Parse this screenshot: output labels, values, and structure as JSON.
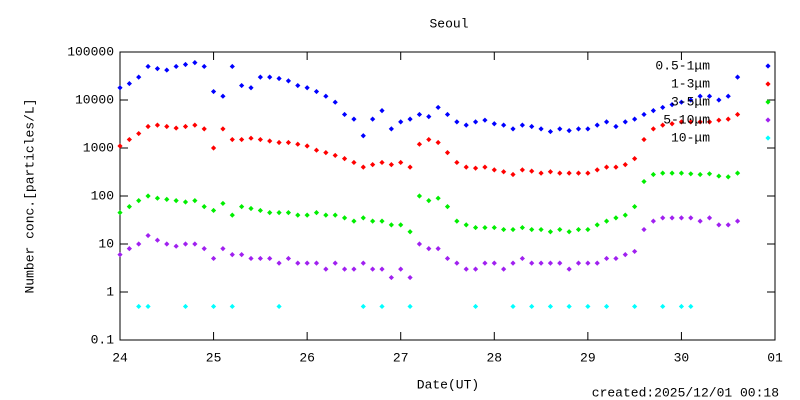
{
  "chart_data": {
    "type": "scatter",
    "title": "Seoul",
    "xlabel": "Date(UT)",
    "ylabel": "Number conc.[particles/L]",
    "annotation": "created:2025/12/01 00:18",
    "log_y": true,
    "legend": "top-right",
    "xlim": [
      24,
      31
    ],
    "xticks": [
      24,
      25,
      26,
      27,
      28,
      29,
      30,
      {
        "value": 31,
        "label": "01"
      }
    ],
    "ylim": [
      0.1,
      100000
    ],
    "yticks": [
      0.1,
      1,
      10,
      100,
      1000,
      10000,
      100000
    ],
    "x": [
      24.0,
      24.1,
      24.2,
      24.3,
      24.4,
      24.5,
      24.6,
      24.7,
      24.8,
      24.9,
      25.0,
      25.1,
      25.2,
      25.3,
      25.4,
      25.5,
      25.6,
      25.7,
      25.8,
      25.9,
      26.0,
      26.1,
      26.2,
      26.3,
      26.4,
      26.5,
      26.6,
      26.7,
      26.8,
      26.9,
      27.0,
      27.1,
      27.2,
      27.3,
      27.4,
      27.5,
      27.6,
      27.7,
      27.8,
      27.9,
      28.0,
      28.1,
      28.2,
      28.3,
      28.4,
      28.5,
      28.6,
      28.7,
      28.8,
      28.9,
      29.0,
      29.1,
      29.2,
      29.3,
      29.4,
      29.5,
      29.6,
      29.7,
      29.8,
      29.9,
      30.0,
      30.1,
      30.2,
      30.3,
      30.4,
      30.5,
      30.6
    ],
    "series": [
      {
        "name": "0.5-1μm",
        "color": "#0000ff",
        "values": [
          18000,
          22000,
          30000,
          50000,
          45000,
          42000,
          50000,
          55000,
          60000,
          50000,
          15000,
          12000,
          50000,
          20000,
          18000,
          30000,
          30000,
          28000,
          25000,
          20000,
          18000,
          15000,
          12000,
          9000,
          5000,
          4000,
          1800,
          4000,
          6000,
          2500,
          3500,
          4000,
          5000,
          4500,
          7000,
          5000,
          3500,
          3000,
          3500,
          3800,
          3200,
          3000,
          2500,
          3000,
          2800,
          2500,
          2200,
          2500,
          2300,
          2500,
          2500,
          3000,
          3500,
          2800,
          3500,
          4000,
          5000,
          6000,
          7000,
          8000,
          9000,
          10000,
          12000,
          12000,
          10000,
          12000,
          30000
        ]
      },
      {
        "name": "1-3μm",
        "color": "#ff0000",
        "values": [
          1100,
          1500,
          2000,
          2800,
          3000,
          2800,
          2600,
          2800,
          3000,
          2500,
          1000,
          2500,
          1500,
          1500,
          1600,
          1500,
          1400,
          1300,
          1300,
          1200,
          1100,
          900,
          800,
          700,
          600,
          500,
          400,
          450,
          500,
          450,
          500,
          400,
          1200,
          1500,
          1300,
          800,
          500,
          400,
          380,
          400,
          350,
          320,
          280,
          350,
          330,
          300,
          320,
          300,
          300,
          300,
          300,
          350,
          400,
          400,
          450,
          600,
          1500,
          2500,
          3000,
          3200,
          3500,
          3500,
          3500,
          3500,
          3800,
          4000,
          5000
        ]
      },
      {
        "name": "3-5μm",
        "color": "#00ee00",
        "values": [
          45,
          60,
          80,
          100,
          90,
          85,
          80,
          75,
          80,
          60,
          50,
          70,
          40,
          60,
          55,
          50,
          45,
          45,
          45,
          40,
          40,
          45,
          40,
          40,
          35,
          30,
          35,
          30,
          30,
          25,
          25,
          18,
          100,
          80,
          90,
          60,
          30,
          25,
          22,
          22,
          22,
          20,
          20,
          22,
          20,
          20,
          18,
          20,
          18,
          20,
          20,
          25,
          30,
          35,
          40,
          60,
          200,
          280,
          300,
          300,
          300,
          290,
          280,
          290,
          260,
          250,
          300
        ]
      },
      {
        "name": "5-10μm",
        "color": "#a020f0",
        "values": [
          6,
          8,
          10,
          15,
          12,
          10,
          9,
          10,
          10,
          8,
          5,
          8,
          6,
          6,
          5,
          5,
          5,
          4,
          5,
          4,
          4,
          4,
          3,
          4,
          3,
          3,
          4,
          3,
          3,
          2,
          3,
          2,
          10,
          8,
          8,
          5,
          4,
          3,
          3,
          4,
          4,
          3,
          4,
          5,
          4,
          4,
          4,
          4,
          3,
          4,
          4,
          4,
          5,
          5,
          6,
          7,
          20,
          30,
          35,
          35,
          35,
          35,
          30,
          35,
          25,
          25,
          30
        ]
      },
      {
        "name": "10-μm",
        "color": "#00ffff",
        "values": [
          null,
          null,
          0.5,
          0.5,
          null,
          null,
          null,
          0.5,
          null,
          null,
          0.5,
          null,
          0.5,
          null,
          null,
          null,
          null,
          0.5,
          null,
          null,
          null,
          null,
          null,
          null,
          null,
          null,
          0.5,
          null,
          0.5,
          null,
          null,
          0.5,
          null,
          null,
          null,
          null,
          null,
          null,
          0.5,
          null,
          null,
          null,
          0.5,
          null,
          0.5,
          null,
          0.5,
          null,
          0.5,
          null,
          0.5,
          null,
          0.5,
          null,
          null,
          0.5,
          null,
          null,
          0.5,
          null,
          0.5,
          0.5,
          null,
          null,
          null,
          null,
          null
        ]
      }
    ]
  }
}
